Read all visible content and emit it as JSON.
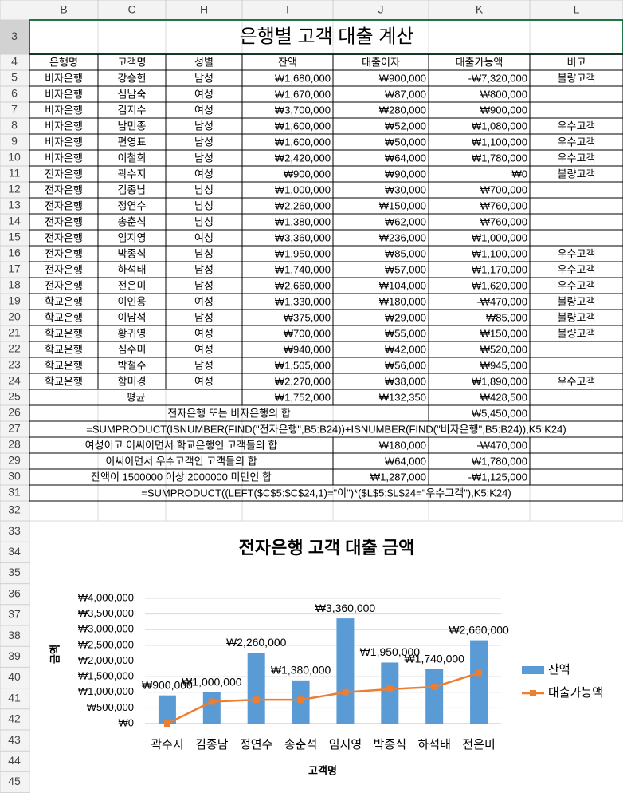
{
  "columns": [
    "B",
    "C",
    "H",
    "I",
    "J",
    "K",
    "L"
  ],
  "row_numbers": [
    "3",
    "4",
    "5",
    "6",
    "7",
    "8",
    "9",
    "10",
    "11",
    "12",
    "13",
    "14",
    "15",
    "16",
    "17",
    "18",
    "19",
    "20",
    "21",
    "22",
    "23",
    "24",
    "25",
    "26",
    "27",
    "28",
    "29",
    "30",
    "31",
    "32",
    "33",
    "34",
    "35",
    "36",
    "37",
    "38",
    "39",
    "40",
    "41",
    "42",
    "43",
    "44",
    "45"
  ],
  "table": {
    "title": "은행별 고객 대출 계산",
    "header": [
      "은행명",
      "고객명",
      "성별",
      "잔액",
      "대출이자",
      "대출가능액",
      "비고"
    ],
    "rows": [
      [
        "비자은행",
        "강승헌",
        "남성",
        "₩1,680,000",
        "₩900,000",
        "-₩7,320,000",
        "불량고객"
      ],
      [
        "비자은행",
        "심남숙",
        "여성",
        "₩1,670,000",
        "₩87,000",
        "₩800,000",
        null
      ],
      [
        "비자은행",
        "김지수",
        "여성",
        "₩3,700,000",
        "₩280,000",
        "₩900,000",
        null
      ],
      [
        "비자은행",
        "남민종",
        "남성",
        "₩1,600,000",
        "₩52,000",
        "₩1,080,000",
        "우수고객"
      ],
      [
        "비자은행",
        "편영표",
        "남성",
        "₩1,600,000",
        "₩50,000",
        "₩1,100,000",
        "우수고객"
      ],
      [
        "비자은행",
        "이철희",
        "남성",
        "₩2,420,000",
        "₩64,000",
        "₩1,780,000",
        "우수고객"
      ],
      [
        "전자은행",
        "곽수지",
        "여성",
        "₩900,000",
        "₩90,000",
        "₩0",
        "불량고객"
      ],
      [
        "전자은행",
        "김종남",
        "남성",
        "₩1,000,000",
        "₩30,000",
        "₩700,000",
        null
      ],
      [
        "전자은행",
        "정연수",
        "남성",
        "₩2,260,000",
        "₩150,000",
        "₩760,000",
        null
      ],
      [
        "전자은행",
        "송춘석",
        "남성",
        "₩1,380,000",
        "₩62,000",
        "₩760,000",
        null
      ],
      [
        "전자은행",
        "임지영",
        "여성",
        "₩3,360,000",
        "₩236,000",
        "₩1,000,000",
        null
      ],
      [
        "전자은행",
        "박종식",
        "남성",
        "₩1,950,000",
        "₩85,000",
        "₩1,100,000",
        "우수고객"
      ],
      [
        "전자은행",
        "하석태",
        "남성",
        "₩1,740,000",
        "₩57,000",
        "₩1,170,000",
        "우수고객"
      ],
      [
        "전자은행",
        "전은미",
        "남성",
        "₩2,660,000",
        "₩104,000",
        "₩1,620,000",
        "우수고객"
      ],
      [
        "학교은행",
        "이인용",
        "여성",
        "₩1,330,000",
        "₩180,000",
        "-₩470,000",
        "불량고객"
      ],
      [
        "학교은행",
        "이남석",
        "남성",
        "₩375,000",
        "₩29,000",
        "₩85,000",
        "불량고객"
      ],
      [
        "학교은행",
        "황귀영",
        "여성",
        "₩700,000",
        "₩55,000",
        "₩150,000",
        "불량고객"
      ],
      [
        "학교은행",
        "심수미",
        "여성",
        "₩940,000",
        "₩42,000",
        "₩520,000",
        null
      ],
      [
        "학교은행",
        "박철수",
        "남성",
        "₩1,505,000",
        "₩56,000",
        "₩945,000",
        null
      ],
      [
        "학교은행",
        "함미경",
        "여성",
        "₩2,270,000",
        "₩38,000",
        "₩1,890,000",
        "우수고객"
      ]
    ],
    "summary": [
      [
        "평균",
        "₩1,752,000",
        "₩132,350",
        "₩428,500"
      ],
      [
        "전자은행 또는 비자은행의 합",
        "₩5,450,000"
      ],
      [
        "=SUMPRODUCT(ISNUMBER(FIND(\"전자은행\",B5:B24))+ISNUMBER(FIND(\"비자은행\",B5:B24)),K5:K24)"
      ],
      [
        "여성이고 이씨이면서 학교은행인 고객들의 합",
        "₩180,000",
        "-₩470,000"
      ],
      [
        "이씨이면서 우수고객인 고객들의 합",
        "₩64,000",
        "₩1,780,000"
      ],
      [
        "잔액이 1500000 이상 2000000 미만인 합",
        "₩1,287,000",
        "-₩1,125,000"
      ],
      [
        "=SUMPRODUCT((LEFT($C$5:$C$24,1)=\"이\")*($L$5:$L$24=\"우수고객\"),K5:K24)"
      ]
    ]
  },
  "chart_data": {
    "type": "bar",
    "title": "전자은행 고객 대출 금액",
    "x_label": "고객명",
    "y_label": "금액",
    "categories": [
      "곽수지",
      "김종남",
      "정연수",
      "송춘석",
      "임지영",
      "박종식",
      "하석태",
      "전은미"
    ],
    "series": [
      {
        "name": "잔액",
        "type": "bar",
        "color": "#5b9bd5",
        "values": [
          900000,
          1000000,
          2260000,
          1380000,
          3360000,
          1950000,
          1740000,
          2660000
        ],
        "value_labels": [
          "₩900,000",
          "₩1,000,000",
          "₩2,260,000",
          "₩1,380,000",
          "₩3,360,000",
          "₩1,950,000",
          "₩1,740,000",
          "₩2,660,000"
        ]
      },
      {
        "name": "대출가능액",
        "type": "line",
        "color": "#ed7d31",
        "values": [
          0,
          700000,
          760000,
          760000,
          1000000,
          1100000,
          1170000,
          1620000
        ]
      }
    ],
    "ylim": [
      0,
      4000000
    ],
    "yticks": [
      {
        "value": 0,
        "label": "₩0"
      },
      {
        "value": 500000,
        "label": "₩500,000"
      },
      {
        "value": 1000000,
        "label": "₩1,000,000"
      },
      {
        "value": 1500000,
        "label": "₩1,500,000"
      },
      {
        "value": 2000000,
        "label": "₩2,000,000"
      },
      {
        "value": 2500000,
        "label": "₩2,500,000"
      },
      {
        "value": 3000000,
        "label": "₩3,000,000"
      },
      {
        "value": 3500000,
        "label": "₩3,500,000"
      },
      {
        "value": 4000000,
        "label": "₩4,000,000"
      }
    ],
    "grid": true,
    "legend": "right"
  }
}
